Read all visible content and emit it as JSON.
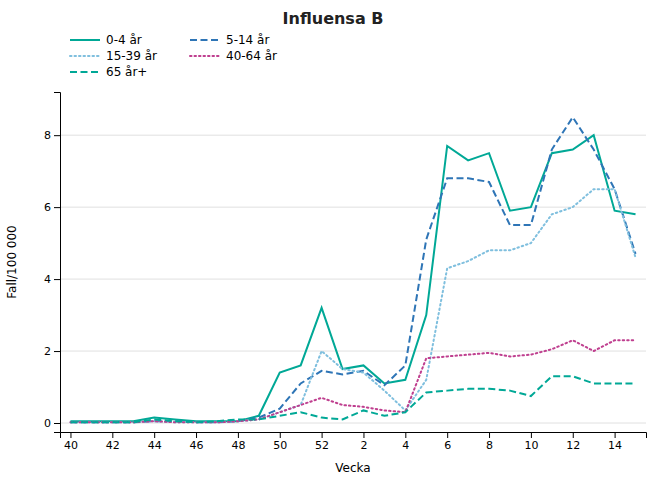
{
  "chart_data": {
    "type": "line",
    "title": "Influensa B",
    "x_label": "Vecka",
    "y_label": "Fall/100 000",
    "categories": [
      "40",
      null,
      "42",
      null,
      "44",
      null,
      "46",
      null,
      "48",
      null,
      "50",
      null,
      "52",
      null,
      "2",
      null,
      "4",
      null,
      "6",
      null,
      "8",
      null,
      "10",
      null,
      "12",
      null,
      "14",
      null
    ],
    "ylim": [
      -0.25,
      9.2
    ],
    "yticks": [
      0,
      2,
      4,
      6,
      8
    ],
    "grid": true,
    "legend": "upper left",
    "series": [
      {
        "name": "0-4 år",
        "color": "#00a896",
        "line_style": "solid",
        "values": [
          0.05,
          0.05,
          0.05,
          0.05,
          0.15,
          0.1,
          0.05,
          0.05,
          0.05,
          0.2,
          1.4,
          1.6,
          3.2,
          1.5,
          1.6,
          1.1,
          1.2,
          3.0,
          7.7,
          7.3,
          7.5,
          5.9,
          6.0,
          7.5,
          7.6,
          8.0,
          5.9,
          5.8
        ]
      },
      {
        "name": "5-14 år",
        "color": "#2e75b6",
        "line_style": "dashed",
        "values": [
          0.02,
          0.02,
          0.02,
          0.02,
          0.05,
          0.05,
          0.02,
          0.02,
          0.05,
          0.15,
          0.4,
          1.1,
          1.45,
          1.35,
          1.45,
          1.05,
          1.6,
          5.1,
          6.8,
          6.8,
          6.7,
          5.5,
          5.5,
          7.6,
          8.5,
          7.6,
          6.5,
          4.7
        ]
      },
      {
        "name": "15-39 år",
        "color": "#7fbfde",
        "line_style": "dotted",
        "values": [
          0.02,
          0.02,
          0.02,
          0.02,
          0.05,
          0.02,
          0.02,
          0.02,
          0.05,
          0.1,
          0.3,
          0.5,
          2.0,
          1.5,
          1.4,
          0.9,
          0.35,
          1.2,
          4.3,
          4.5,
          4.8,
          4.8,
          5.0,
          5.8,
          6.0,
          6.5,
          6.5,
          4.6
        ]
      },
      {
        "name": "40-64 år",
        "color": "#bf3f8f",
        "line_style": "dotted",
        "values": [
          0.02,
          0.02,
          0.02,
          0.02,
          0.05,
          0.02,
          0.02,
          0.02,
          0.05,
          0.1,
          0.3,
          0.5,
          0.7,
          0.5,
          0.45,
          0.35,
          0.3,
          1.8,
          1.85,
          1.9,
          1.95,
          1.85,
          1.9,
          2.05,
          2.3,
          2.0,
          2.3,
          2.3
        ]
      },
      {
        "name": "65 år+",
        "color": "#00a896",
        "line_style": "dashed",
        "values": [
          0.02,
          0.02,
          0.02,
          0.02,
          0.1,
          0.05,
          0.02,
          0.05,
          0.1,
          0.1,
          0.2,
          0.3,
          0.15,
          0.1,
          0.35,
          0.2,
          0.3,
          0.85,
          0.9,
          0.95,
          0.95,
          0.9,
          0.75,
          1.3,
          1.3,
          1.1,
          1.1,
          1.1
        ]
      }
    ]
  }
}
